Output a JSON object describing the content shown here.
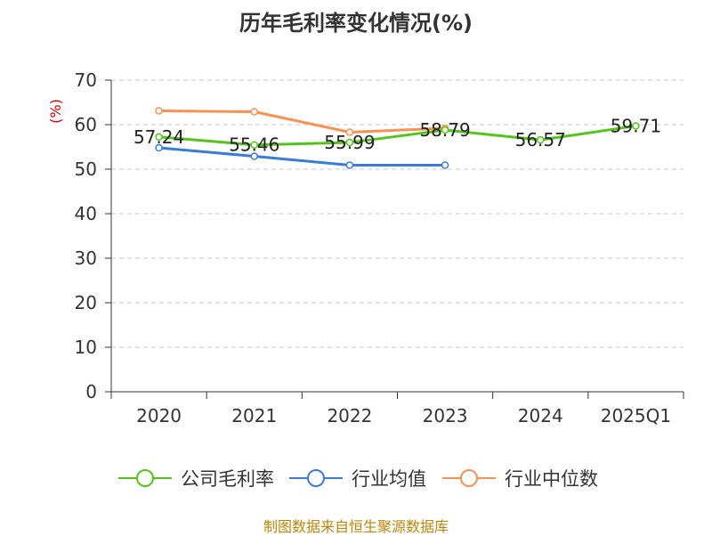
{
  "chart_data": {
    "type": "line",
    "title": "历年毛利率变化情况(%)",
    "ylabel": "(%)",
    "categories": [
      "2020",
      "2021",
      "2022",
      "2023",
      "2024",
      "2025Q1"
    ],
    "ylim": [
      0,
      70
    ],
    "yticks": [
      0,
      10,
      20,
      30,
      40,
      50,
      60,
      70
    ],
    "grid": true,
    "legend_position": "bottom",
    "series": [
      {
        "name": "公司毛利率",
        "color": "#52c41a",
        "values": [
          57.24,
          55.46,
          55.99,
          58.79,
          56.57,
          59.71
        ],
        "labels": [
          "57.24",
          "55.46",
          "55.99",
          "58.79",
          "56.57",
          "59.71"
        ]
      },
      {
        "name": "行业均值",
        "color": "#3a7bd5",
        "values": [
          54.8,
          52.9,
          50.9,
          50.9,
          null,
          null
        ]
      },
      {
        "name": "行业中位数",
        "color": "#f79154",
        "values": [
          63.1,
          62.9,
          58.3,
          59.2,
          null,
          null
        ]
      }
    ]
  },
  "source": "制图数据来自恒生聚源数据库"
}
